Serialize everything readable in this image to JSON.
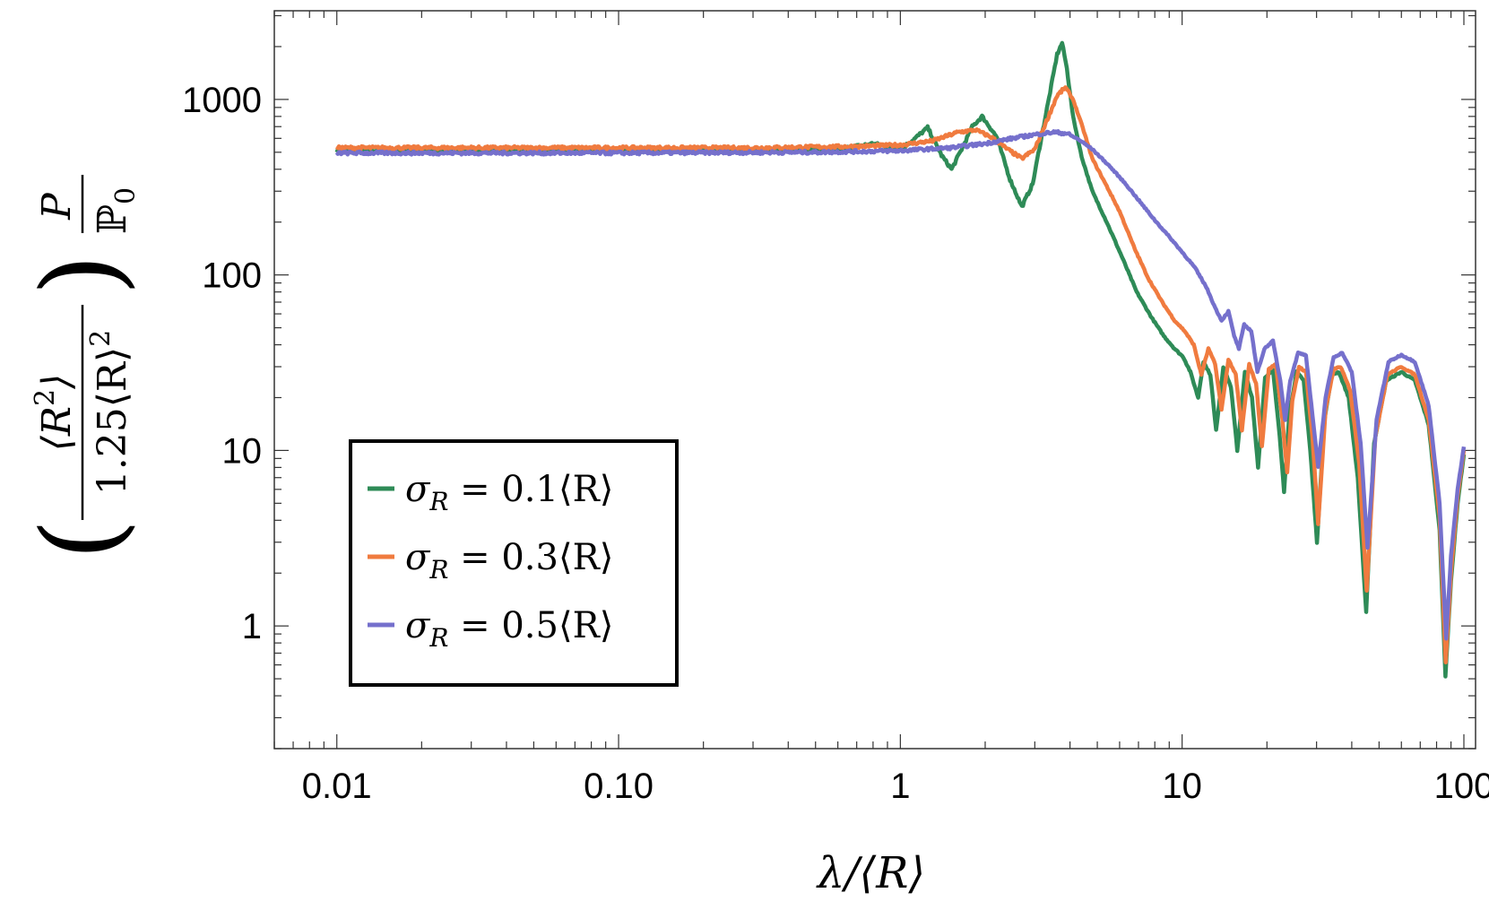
{
  "chart_data": {
    "type": "line",
    "title": "",
    "xlabel": "λ/⟨R⟩",
    "ylabel": {
      "prefix": "(",
      "frac1_num": "⟨R",
      "frac1_num_sup": "2",
      "frac1_num_close": "⟩",
      "frac1_den": "1.25⟨R⟩",
      "frac1_den_sup": "2",
      "suffix": ")",
      "frac2_num": "P",
      "frac2_den": "ℙ",
      "frac2_den_sub": "0"
    },
    "x_scale": "log",
    "y_scale": "log",
    "xlim": [
      0.006,
      110
    ],
    "ylim": [
      0.2,
      3200
    ],
    "x_ticks": [
      {
        "value": 0.01,
        "label": "0.01"
      },
      {
        "value": 0.1,
        "label": "0.10"
      },
      {
        "value": 1,
        "label": "1"
      },
      {
        "value": 10,
        "label": "10"
      },
      {
        "value": 100,
        "label": "100"
      }
    ],
    "y_ticks": [
      {
        "value": 1,
        "label": "1"
      },
      {
        "value": 10,
        "label": "10"
      },
      {
        "value": 100,
        "label": "100"
      },
      {
        "value": 1000,
        "label": "1000"
      }
    ],
    "grid": false,
    "legend_position": "bottom-left",
    "series": [
      {
        "name": "σ_R = 0.1⟨R⟩",
        "legend_label": {
          "sym": "σ",
          "sub": "R",
          "rest": " = 0.1⟨R⟩"
        },
        "color": "#2e8b57",
        "points": [
          [
            0.01,
            510
          ],
          [
            0.3,
            510
          ],
          [
            0.6,
            520
          ],
          [
            0.8,
            560
          ],
          [
            1.0,
            520
          ],
          [
            1.1,
            580
          ],
          [
            1.25,
            690
          ],
          [
            1.4,
            480
          ],
          [
            1.52,
            400
          ],
          [
            1.65,
            520
          ],
          [
            1.8,
            700
          ],
          [
            1.95,
            800
          ],
          [
            2.2,
            610
          ],
          [
            2.45,
            350
          ],
          [
            2.7,
            245
          ],
          [
            2.95,
            330
          ],
          [
            3.15,
            580
          ],
          [
            3.4,
            1100
          ],
          [
            3.6,
            1800
          ],
          [
            3.75,
            2100
          ],
          [
            3.9,
            1500
          ],
          [
            4.1,
            800
          ],
          [
            4.4,
            470
          ],
          [
            4.8,
            300
          ],
          [
            5.4,
            200
          ],
          [
            6.1,
            128
          ],
          [
            6.9,
            80
          ],
          [
            7.8,
            57
          ],
          [
            8.6,
            45
          ],
          [
            9.4,
            38
          ],
          [
            10.1,
            34
          ],
          [
            10.7,
            28
          ],
          [
            11.4,
            20
          ],
          [
            11.9,
            32
          ],
          [
            12.6,
            27
          ],
          [
            13.2,
            13
          ],
          [
            14.0,
            30
          ],
          [
            14.9,
            23
          ],
          [
            15.7,
            10
          ],
          [
            16.7,
            28
          ],
          [
            17.7,
            20
          ],
          [
            18.6,
            8
          ],
          [
            19.7,
            26
          ],
          [
            21.0,
            29
          ],
          [
            22.2,
            12
          ],
          [
            23.0,
            5.8
          ],
          [
            24.0,
            16
          ],
          [
            25.5,
            28
          ],
          [
            27.0,
            25
          ],
          [
            28.5,
            10
          ],
          [
            30.1,
            3.0
          ],
          [
            32.0,
            15
          ],
          [
            34.0,
            27
          ],
          [
            36.0,
            28
          ],
          [
            39.0,
            20
          ],
          [
            42.0,
            7
          ],
          [
            45.0,
            1.2
          ],
          [
            48.0,
            11
          ],
          [
            53.0,
            25
          ],
          [
            60.0,
            28
          ],
          [
            67.0,
            25
          ],
          [
            75.0,
            14
          ],
          [
            82.0,
            3.5
          ],
          [
            86.0,
            0.52
          ],
          [
            90.0,
            1.8
          ],
          [
            95.0,
            5
          ],
          [
            100.0,
            9.5
          ]
        ]
      },
      {
        "name": "σ_R = 0.3⟨R⟩",
        "legend_label": {
          "sym": "σ",
          "sub": "R",
          "rest": " = 0.3⟨R⟩"
        },
        "color": "#f07b3f",
        "points": [
          [
            0.01,
            530
          ],
          [
            0.3,
            530
          ],
          [
            0.7,
            540
          ],
          [
            1.0,
            550
          ],
          [
            1.3,
            580
          ],
          [
            1.6,
            650
          ],
          [
            1.85,
            670
          ],
          [
            2.1,
            610
          ],
          [
            2.4,
            520
          ],
          [
            2.7,
            460
          ],
          [
            3.0,
            520
          ],
          [
            3.3,
            750
          ],
          [
            3.6,
            1050
          ],
          [
            3.85,
            1170
          ],
          [
            4.1,
            1000
          ],
          [
            4.4,
            720
          ],
          [
            4.8,
            460
          ],
          [
            5.4,
            320
          ],
          [
            6.0,
            230
          ],
          [
            6.8,
            140
          ],
          [
            7.6,
            95
          ],
          [
            8.5,
            70
          ],
          [
            9.4,
            55
          ],
          [
            10.2,
            48
          ],
          [
            11.0,
            40
          ],
          [
            11.7,
            27
          ],
          [
            12.4,
            38
          ],
          [
            13.1,
            31
          ],
          [
            13.8,
            17
          ],
          [
            14.6,
            33
          ],
          [
            15.5,
            27
          ],
          [
            16.3,
            13
          ],
          [
            17.3,
            31
          ],
          [
            18.3,
            24
          ],
          [
            19.2,
            10.5
          ],
          [
            20.3,
            29
          ],
          [
            21.5,
            31
          ],
          [
            22.7,
            15
          ],
          [
            23.6,
            7.5
          ],
          [
            24.6,
            19
          ],
          [
            26.0,
            30
          ],
          [
            27.5,
            28
          ],
          [
            29.0,
            12
          ],
          [
            30.4,
            3.8
          ],
          [
            32.3,
            17
          ],
          [
            34.5,
            29
          ],
          [
            36.5,
            30
          ],
          [
            39.5,
            22
          ],
          [
            42.5,
            8.5
          ],
          [
            45.2,
            1.6
          ],
          [
            48.5,
            12
          ],
          [
            53.5,
            27
          ],
          [
            60.0,
            30
          ],
          [
            67.0,
            27
          ],
          [
            75.0,
            15
          ],
          [
            82.0,
            4.2
          ],
          [
            86.2,
            0.62
          ],
          [
            90.0,
            2.0
          ],
          [
            95.0,
            5.5
          ],
          [
            100.0,
            10
          ]
        ]
      },
      {
        "name": "σ_R = 0.5⟨R⟩",
        "legend_label": {
          "sym": "σ",
          "sub": "R",
          "rest": " = 0.5⟨R⟩"
        },
        "color": "#7570cc",
        "points": [
          [
            0.01,
            495
          ],
          [
            0.1,
            495
          ],
          [
            0.5,
            500
          ],
          [
            1.0,
            510
          ],
          [
            1.5,
            530
          ],
          [
            2.0,
            560
          ],
          [
            2.5,
            600
          ],
          [
            3.0,
            630
          ],
          [
            3.5,
            650
          ],
          [
            3.9,
            640
          ],
          [
            4.3,
            590
          ],
          [
            4.8,
            520
          ],
          [
            5.5,
            420
          ],
          [
            6.3,
            330
          ],
          [
            7.1,
            260
          ],
          [
            8.0,
            205
          ],
          [
            9.0,
            165
          ],
          [
            10.0,
            135
          ],
          [
            11.1,
            110
          ],
          [
            12.2,
            85
          ],
          [
            13.1,
            65
          ],
          [
            13.8,
            55
          ],
          [
            14.6,
            62
          ],
          [
            15.3,
            45
          ],
          [
            15.9,
            38
          ],
          [
            16.6,
            52
          ],
          [
            17.6,
            48
          ],
          [
            18.5,
            28
          ],
          [
            19.6,
            38
          ],
          [
            21.0,
            42
          ],
          [
            22.3,
            25
          ],
          [
            23.2,
            15
          ],
          [
            24.2,
            25
          ],
          [
            25.8,
            36
          ],
          [
            27.5,
            35
          ],
          [
            29.0,
            16
          ],
          [
            30.4,
            8.0
          ],
          [
            32.3,
            20
          ],
          [
            34.5,
            34
          ],
          [
            37.0,
            36
          ],
          [
            40.0,
            28
          ],
          [
            43.0,
            11
          ],
          [
            45.5,
            2.8
          ],
          [
            49.0,
            15
          ],
          [
            54.0,
            32
          ],
          [
            60.0,
            35
          ],
          [
            67.0,
            32
          ],
          [
            75.0,
            18
          ],
          [
            82.0,
            5
          ],
          [
            86.5,
            0.85
          ],
          [
            90.0,
            2.5
          ],
          [
            95.0,
            6
          ],
          [
            100.0,
            10.5
          ]
        ]
      }
    ]
  }
}
